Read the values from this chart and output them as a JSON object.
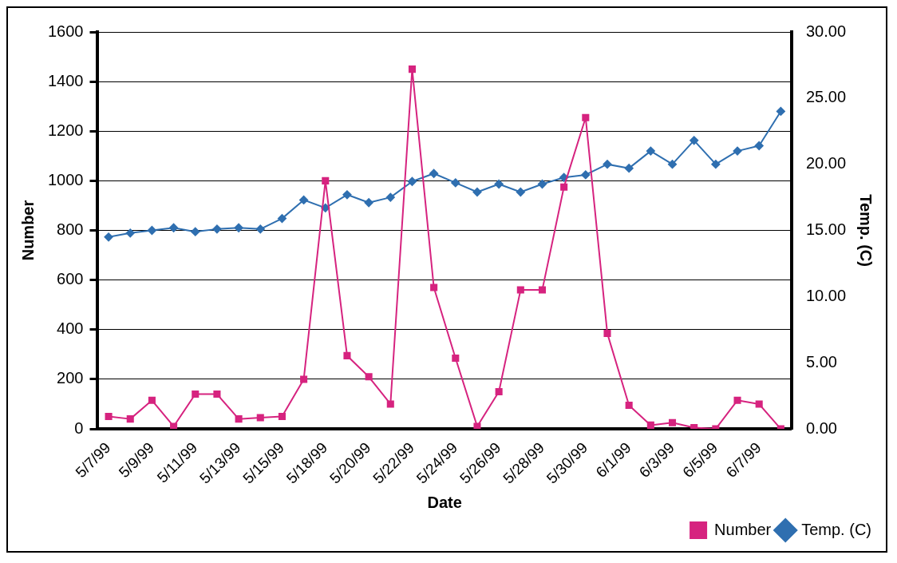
{
  "chart_data": {
    "type": "line",
    "xlabel": "Date",
    "ylabel": "Number",
    "y2label": "Temp. (C)",
    "categories": [
      "5/7/99",
      null,
      "5/9/99",
      null,
      "5/11/99",
      null,
      "5/13/99",
      null,
      "5/15/99",
      null,
      "5/18/99",
      null,
      "5/20/99",
      null,
      "5/22/99",
      null,
      "5/24/99",
      null,
      "5/26/99",
      null,
      "5/28/99",
      null,
      "5/30/99",
      null,
      "6/1/99",
      null,
      "6/3/99",
      null,
      "6/5/99",
      null,
      "6/7/99",
      null
    ],
    "series": [
      {
        "name": "Number",
        "color": "#d6237f",
        "marker": "square",
        "values": [
          50,
          40,
          115,
          10,
          140,
          140,
          40,
          45,
          50,
          200,
          1000,
          295,
          210,
          100,
          1450,
          570,
          285,
          10,
          150,
          560,
          560,
          975,
          1255,
          385,
          95,
          15,
          25,
          5,
          0,
          115,
          100,
          0
        ]
      },
      {
        "name": "Temp. (C)",
        "color": "#2f6fb0",
        "marker": "diamond",
        "axis": "y2",
        "values": [
          14.5,
          14.8,
          15.0,
          15.2,
          14.9,
          15.1,
          15.2,
          15.1,
          15.9,
          17.3,
          16.7,
          17.7,
          17.1,
          17.5,
          18.7,
          19.3,
          18.6,
          17.9,
          18.5,
          17.9,
          18.5,
          19.0,
          19.2,
          20.0,
          19.7,
          21.0,
          20.0,
          21.8,
          20.0,
          21.0,
          21.4,
          24.0
        ]
      }
    ],
    "ylim": [
      0,
      1600
    ],
    "yticks": [
      0,
      200,
      400,
      600,
      800,
      1000,
      1200,
      1400,
      1600
    ],
    "y2lim": [
      0,
      30
    ],
    "y2ticks": [
      {
        "value": 0,
        "label": "0.00"
      },
      {
        "value": 5,
        "label": "5.00"
      },
      {
        "value": 10,
        "label": "10.00"
      },
      {
        "value": 15,
        "label": "15.00"
      },
      {
        "value": 20,
        "label": "20.00"
      },
      {
        "value": 25,
        "label": "25.00"
      },
      {
        "value": 30,
        "label": "30.00"
      }
    ],
    "grid": "y",
    "legend": "bottom right",
    "line_style": "solid"
  }
}
